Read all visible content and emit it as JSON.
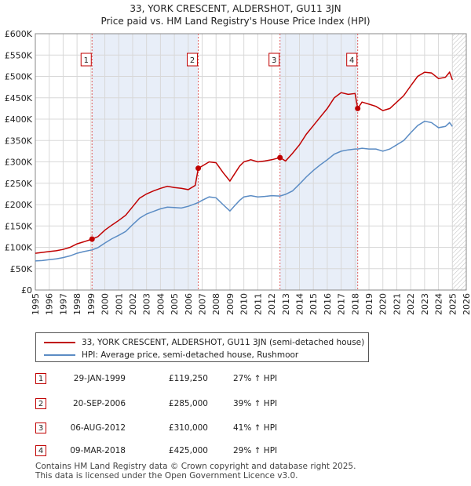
{
  "chart_data": {
    "type": "line",
    "title_line1": "33, YORK CRESCENT, ALDERSHOT, GU11 3JN",
    "title_line2": "Price paid vs. HM Land Registry's House Price Index (HPI)",
    "xlim": [
      1995,
      2026
    ],
    "ylim": [
      0,
      600000
    ],
    "x_ticks": [
      1995,
      1996,
      1997,
      1998,
      1999,
      2000,
      2001,
      2002,
      2003,
      2004,
      2005,
      2006,
      2007,
      2008,
      2009,
      2010,
      2011,
      2012,
      2013,
      2014,
      2015,
      2016,
      2017,
      2018,
      2019,
      2020,
      2021,
      2022,
      2023,
      2024,
      2025,
      2026
    ],
    "y_ticks": [
      {
        "value": 0,
        "label": "£0"
      },
      {
        "value": 50000,
        "label": "£50K"
      },
      {
        "value": 100000,
        "label": "£100K"
      },
      {
        "value": 150000,
        "label": "£150K"
      },
      {
        "value": 200000,
        "label": "£200K"
      },
      {
        "value": 250000,
        "label": "£250K"
      },
      {
        "value": 300000,
        "label": "£300K"
      },
      {
        "value": 350000,
        "label": "£350K"
      },
      {
        "value": 400000,
        "label": "£400K"
      },
      {
        "value": 450000,
        "label": "£450K"
      },
      {
        "value": 500000,
        "label": "£500K"
      },
      {
        "value": 550000,
        "label": "£550K"
      },
      {
        "value": 600000,
        "label": "£600K"
      }
    ],
    "grid": true,
    "shaded_periods": [
      [
        1999.08,
        2006.72
      ],
      [
        2012.6,
        2018.19
      ]
    ],
    "hatched_after": 2025.0,
    "series": [
      {
        "name": "33, YORK CRESCENT, ALDERSHOT, GU11 3JN (semi-detached house)",
        "color": "#c00000",
        "x": [
          1995.0,
          1995.5,
          1996.0,
          1996.5,
          1997.0,
          1997.5,
          1998.0,
          1998.5,
          1999.08,
          1999.5,
          2000.0,
          2000.5,
          2001.0,
          2001.5,
          2002.0,
          2002.5,
          2003.0,
          2003.5,
          2004.0,
          2004.5,
          2005.0,
          2005.5,
          2006.0,
          2006.5,
          2006.72,
          2007.0,
          2007.5,
          2008.0,
          2008.5,
          2009.0,
          2009.3,
          2009.7,
          2010.0,
          2010.5,
          2011.0,
          2011.5,
          2012.0,
          2012.6,
          2013.0,
          2013.5,
          2014.0,
          2014.5,
          2015.0,
          2015.5,
          2016.0,
          2016.5,
          2017.0,
          2017.5,
          2018.0,
          2018.19,
          2018.5,
          2019.0,
          2019.5,
          2020.0,
          2020.5,
          2021.0,
          2021.5,
          2022.0,
          2022.5,
          2023.0,
          2023.5,
          2024.0,
          2024.5,
          2024.8,
          2025.0
        ],
        "values": [
          86000,
          88000,
          90000,
          92000,
          95000,
          100000,
          108000,
          113000,
          119250,
          125000,
          140000,
          152000,
          163000,
          175000,
          195000,
          215000,
          225000,
          232000,
          238000,
          243000,
          240000,
          238000,
          235000,
          245000,
          285000,
          290000,
          300000,
          298000,
          275000,
          255000,
          270000,
          290000,
          300000,
          305000,
          300000,
          302000,
          305000,
          310000,
          302000,
          320000,
          340000,
          365000,
          385000,
          405000,
          425000,
          450000,
          462000,
          458000,
          460000,
          425000,
          440000,
          435000,
          430000,
          420000,
          425000,
          440000,
          455000,
          478000,
          500000,
          510000,
          508000,
          495000,
          498000,
          510000,
          492000
        ]
      },
      {
        "name": "HPI: Average price, semi-detached house, Rushmoor",
        "color": "#5b8cc4",
        "x": [
          1995.0,
          1995.5,
          1996.0,
          1996.5,
          1997.0,
          1997.5,
          1998.0,
          1998.5,
          1999.08,
          1999.5,
          2000.0,
          2000.5,
          2001.0,
          2001.5,
          2002.0,
          2002.5,
          2003.0,
          2003.5,
          2004.0,
          2004.5,
          2005.0,
          2005.5,
          2006.0,
          2006.5,
          2006.72,
          2007.0,
          2007.5,
          2008.0,
          2008.5,
          2009.0,
          2009.3,
          2009.7,
          2010.0,
          2010.5,
          2011.0,
          2011.5,
          2012.0,
          2012.6,
          2013.0,
          2013.5,
          2014.0,
          2014.5,
          2015.0,
          2015.5,
          2016.0,
          2016.5,
          2017.0,
          2017.5,
          2018.0,
          2018.19,
          2018.5,
          2019.0,
          2019.5,
          2020.0,
          2020.5,
          2021.0,
          2021.5,
          2022.0,
          2022.5,
          2023.0,
          2023.5,
          2024.0,
          2024.5,
          2024.8,
          2025.0
        ],
        "values": [
          68000,
          69000,
          71000,
          73000,
          76000,
          80000,
          86000,
          90000,
          94000,
          99000,
          110000,
          120000,
          128000,
          137000,
          153000,
          168000,
          178000,
          184000,
          190000,
          194000,
          193000,
          192000,
          196000,
          202000,
          205000,
          210000,
          218000,
          216000,
          200000,
          185000,
          196000,
          210000,
          218000,
          221000,
          218000,
          219000,
          221000,
          220000,
          224000,
          232000,
          248000,
          265000,
          280000,
          293000,
          305000,
          318000,
          325000,
          328000,
          330000,
          330000,
          332000,
          330000,
          330000,
          325000,
          330000,
          340000,
          350000,
          368000,
          385000,
          395000,
          392000,
          380000,
          383000,
          392000,
          383000
        ]
      }
    ],
    "sales": [
      {
        "id": "1",
        "x": 1999.08,
        "value": 119250
      },
      {
        "id": "2",
        "x": 2006.72,
        "value": 285000
      },
      {
        "id": "3",
        "x": 2012.6,
        "value": 310000
      },
      {
        "id": "4",
        "x": 2018.19,
        "value": 425000
      }
    ]
  },
  "legend": {
    "property_label": "33, YORK CRESCENT, ALDERSHOT, GU11 3JN (semi-detached house)",
    "hpi_label": "HPI: Average price, semi-detached house, Rushmoor"
  },
  "transactions": [
    {
      "id": "1",
      "date": "29-JAN-1999",
      "price": "£119,250",
      "hpi": "27% ↑ HPI"
    },
    {
      "id": "2",
      "date": "20-SEP-2006",
      "price": "£285,000",
      "hpi": "39% ↑ HPI"
    },
    {
      "id": "3",
      "date": "06-AUG-2012",
      "price": "£310,000",
      "hpi": "41% ↑ HPI"
    },
    {
      "id": "4",
      "date": "09-MAR-2018",
      "price": "£425,000",
      "hpi": "29% ↑ HPI"
    }
  ],
  "footer": {
    "line1": "Contains HM Land Registry data © Crown copyright and database right 2025.",
    "line2": "This data is licensed under the Open Government Licence v3.0."
  },
  "colors": {
    "property": "#c00000",
    "hpi": "#5b8cc4",
    "shade": "#e8eef8",
    "grid": "#d8d8d8"
  }
}
